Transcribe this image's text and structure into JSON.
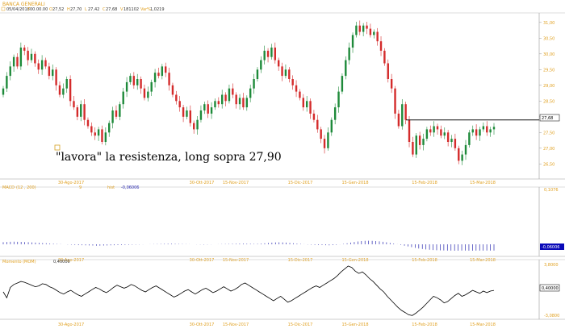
{
  "header": {
    "instrument": "BANCA GENERALI",
    "date": "05/04/2018",
    "time": "00.00.00",
    "open": "27,52",
    "high": "27,70",
    "low": "27,42",
    "close": "27,68",
    "volume": "181102",
    "var_pct": "1,0219"
  },
  "annotation": {
    "text": "\"lavora\" la resistenza, long sopra 27,90"
  },
  "price_panel": {
    "y_ticks": [
      "31,00",
      "30,50",
      "30,00",
      "29,50",
      "29,00",
      "28,50",
      "28,00",
      "27,50",
      "27,00",
      "26,50"
    ],
    "last_price_label": "27,68",
    "resistance": 27.9
  },
  "macd_panel": {
    "title": "MACD",
    "params": "(12 , 200)",
    "extra": "9",
    "hist_label": "hist",
    "hist_value": "-0,06006",
    "y_top": "0,1076",
    "last_label": "-0,06006"
  },
  "momentum_panel": {
    "title": "Momento (MOM)",
    "value": "0,40000",
    "y_top": "3,8000",
    "y_bottom": "-3,0800",
    "last_label": "0,40000"
  },
  "x_labels": [
    "30-Ago-2017",
    "30-Ott-2017",
    "15-Nov-2017",
    "15-Dic-2017",
    "15-Gen-2018",
    "15-Feb-2018",
    "15-Mar-2018"
  ],
  "colors": {
    "up": "#1e8a3a",
    "down": "#d42b2b",
    "axis_text": "#e0a020",
    "macd_bar": "#2a2ab0",
    "line": "#000000"
  },
  "chart_data": {
    "type": "candlestick",
    "title": "BANCA GENERALI",
    "ylim": [
      26.2,
      31.2
    ],
    "closes": [
      28.9,
      29.3,
      29.6,
      29.9,
      29.6,
      30.2,
      30.1,
      29.8,
      30.0,
      29.7,
      29.5,
      29.8,
      29.6,
      29.3,
      29.5,
      29.0,
      28.7,
      28.9,
      29.2,
      28.5,
      28.3,
      28.0,
      28.4,
      27.9,
      27.7,
      27.5,
      27.4,
      27.6,
      27.2,
      27.5,
      27.8,
      28.2,
      28.0,
      28.4,
      28.8,
      29.1,
      29.3,
      29.0,
      29.2,
      28.9,
      28.6,
      28.8,
      29.1,
      29.4,
      29.3,
      29.6,
      29.4,
      29.0,
      28.7,
      28.5,
      28.3,
      28.0,
      28.2,
      27.8,
      27.6,
      27.9,
      28.2,
      28.4,
      28.1,
      28.3,
      28.5,
      28.4,
      28.7,
      28.5,
      28.9,
      28.7,
      28.4,
      28.6,
      28.3,
      28.6,
      28.9,
      29.2,
      29.5,
      29.8,
      30.1,
      29.9,
      30.2,
      29.8,
      29.6,
      29.3,
      29.5,
      29.2,
      29.0,
      28.8,
      28.6,
      28.3,
      28.5,
      28.1,
      27.9,
      27.6,
      27.3,
      27.0,
      27.5,
      27.9,
      28.3,
      28.8,
      29.3,
      29.8,
      30.2,
      30.6,
      30.9,
      30.7,
      30.9,
      30.8,
      30.6,
      30.7,
      30.4,
      30.1,
      29.7,
      29.2,
      28.9,
      28.1,
      27.7,
      28.4,
      27.9,
      27.2,
      26.8,
      27.4,
      27.1,
      27.3,
      27.6,
      27.5,
      27.7,
      27.6,
      27.4,
      27.5,
      27.2,
      27.3,
      27.0,
      26.6,
      26.8,
      27.1,
      27.5,
      27.6,
      27.4,
      27.6,
      27.7,
      27.5,
      27.6,
      27.68
    ],
    "macd": [
      0.02,
      0.022,
      0.024,
      0.025,
      0.024,
      0.023,
      0.021,
      0.02,
      0.018,
      0.016,
      0.014,
      0.012,
      0.01,
      0.008,
      0.006,
      0.004,
      0.002,
      0.0,
      -0.002,
      -0.004,
      -0.006,
      -0.008,
      -0.009,
      -0.01,
      -0.011,
      -0.012,
      -0.013,
      -0.013,
      -0.012,
      -0.011,
      -0.01,
      -0.009,
      -0.008,
      -0.007,
      -0.006,
      -0.005,
      -0.004,
      -0.003,
      -0.002,
      -0.001,
      0.0,
      0.001,
      0.002,
      0.003,
      0.004,
      0.005,
      0.006,
      0.006,
      0.005,
      0.004,
      0.003,
      0.002,
      0.001,
      0.0,
      -0.001,
      -0.002,
      -0.003,
      -0.002,
      -0.001,
      0.0,
      0.001,
      0.002,
      0.003,
      0.004,
      0.005,
      0.006,
      0.007,
      0.007,
      0.006,
      0.005,
      0.004,
      0.005,
      0.007,
      0.01,
      0.013,
      0.016,
      0.018,
      0.019,
      0.018,
      0.016,
      0.013,
      0.01,
      0.007,
      0.004,
      0.001,
      -0.002,
      -0.004,
      -0.006,
      -0.007,
      -0.008,
      -0.009,
      -0.01,
      -0.008,
      -0.005,
      -0.001,
      0.004,
      0.01,
      0.016,
      0.022,
      0.027,
      0.031,
      0.033,
      0.034,
      0.033,
      0.031,
      0.028,
      0.024,
      0.019,
      0.013,
      0.007,
      0.001,
      -0.006,
      -0.013,
      -0.02,
      -0.027,
      -0.034,
      -0.04,
      -0.045,
      -0.049,
      -0.052,
      -0.055,
      -0.057,
      -0.058,
      -0.059,
      -0.06,
      -0.06,
      -0.061,
      -0.061,
      -0.06,
      -0.06,
      -0.061,
      -0.061,
      -0.06,
      -0.06,
      -0.06,
      -0.06,
      -0.06,
      -0.06006
    ],
    "momentum": [
      0.2,
      -0.6,
      0.8,
      1.2,
      1.4,
      1.6,
      1.5,
      1.3,
      1.1,
      0.9,
      1.0,
      1.3,
      1.2,
      0.9,
      0.7,
      0.4,
      0.1,
      -0.1,
      0.2,
      0.4,
      0.1,
      -0.2,
      -0.4,
      -0.1,
      0.2,
      0.5,
      0.8,
      0.6,
      0.3,
      0.1,
      0.4,
      0.8,
      1.1,
      0.9,
      0.7,
      0.9,
      1.2,
      1.0,
      0.7,
      0.4,
      0.2,
      0.5,
      0.8,
      1.0,
      0.7,
      0.4,
      0.1,
      -0.2,
      -0.5,
      -0.3,
      0.0,
      0.3,
      0.5,
      0.2,
      -0.1,
      0.2,
      0.5,
      0.7,
      0.4,
      0.1,
      0.3,
      0.6,
      0.9,
      0.6,
      0.3,
      0.5,
      0.8,
      1.2,
      1.4,
      1.1,
      0.8,
      0.5,
      0.2,
      -0.1,
      -0.4,
      -0.7,
      -1.0,
      -0.7,
      -0.4,
      -0.8,
      -1.2,
      -1.0,
      -0.7,
      -0.4,
      -0.1,
      0.2,
      0.5,
      0.8,
      1.0,
      0.8,
      1.1,
      1.4,
      1.7,
      2.0,
      2.4,
      2.9,
      3.3,
      3.7,
      3.5,
      3.0,
      2.7,
      2.9,
      2.5,
      2.0,
      1.6,
      1.1,
      0.6,
      0.2,
      -0.4,
      -0.9,
      -1.4,
      -1.9,
      -2.3,
      -2.6,
      -2.9,
      -3.0,
      -2.7,
      -2.3,
      -1.9,
      -1.4,
      -0.9,
      -0.4,
      -0.6,
      -0.9,
      -1.3,
      -1.1,
      -0.7,
      -0.3,
      0.0,
      -0.4,
      -0.2,
      0.1,
      0.4,
      0.2,
      0.0,
      0.3,
      0.1,
      0.3,
      0.4
    ]
  }
}
